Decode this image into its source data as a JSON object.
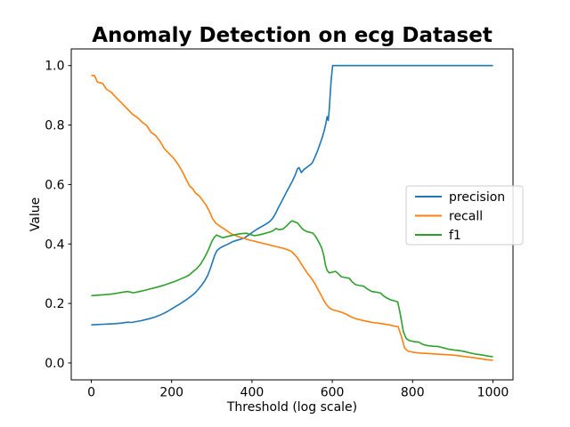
{
  "figure": {
    "background": "#ffffff"
  },
  "chart_data": {
    "type": "line",
    "title": "Anomaly Detection on ecg Dataset",
    "xlabel": "Threshold (log scale)",
    "ylabel": "Value",
    "xlim": [
      -50,
      1050
    ],
    "ylim": [
      -0.057,
      1.056
    ],
    "xticks": [
      0,
      200,
      400,
      600,
      800,
      1000
    ],
    "xtick_labels": [
      "0",
      "200",
      "400",
      "600",
      "800",
      "1000"
    ],
    "yticks": [
      0.0,
      0.2,
      0.4,
      0.6,
      0.8,
      1.0
    ],
    "ytick_labels": [
      "0.0",
      "0.2",
      "0.4",
      "0.6",
      "0.8",
      "1.0"
    ],
    "grid": false,
    "legend": {
      "position": "center right",
      "entries": [
        "precision",
        "recall",
        "f1"
      ]
    },
    "series": [
      {
        "name": "precision",
        "color": "#1f77b4",
        "points": [
          [
            0,
            0.128
          ],
          [
            15,
            0.129
          ],
          [
            30,
            0.13
          ],
          [
            45,
            0.131
          ],
          [
            60,
            0.132
          ],
          [
            75,
            0.134
          ],
          [
            90,
            0.137
          ],
          [
            100,
            0.136
          ],
          [
            112,
            0.139
          ],
          [
            124,
            0.142
          ],
          [
            136,
            0.146
          ],
          [
            148,
            0.15
          ],
          [
            158,
            0.154
          ],
          [
            168,
            0.159
          ],
          [
            178,
            0.165
          ],
          [
            188,
            0.172
          ],
          [
            198,
            0.18
          ],
          [
            208,
            0.188
          ],
          [
            218,
            0.196
          ],
          [
            228,
            0.205
          ],
          [
            238,
            0.214
          ],
          [
            248,
            0.224
          ],
          [
            258,
            0.235
          ],
          [
            266,
            0.247
          ],
          [
            274,
            0.26
          ],
          [
            282,
            0.275
          ],
          [
            290,
            0.295
          ],
          [
            297,
            0.32
          ],
          [
            303,
            0.345
          ],
          [
            308,
            0.365
          ],
          [
            313,
            0.378
          ],
          [
            320,
            0.386
          ],
          [
            328,
            0.392
          ],
          [
            336,
            0.397
          ],
          [
            344,
            0.402
          ],
          [
            352,
            0.408
          ],
          [
            362,
            0.412
          ],
          [
            372,
            0.416
          ],
          [
            382,
            0.421
          ],
          [
            392,
            0.43
          ],
          [
            402,
            0.44
          ],
          [
            413,
            0.45
          ],
          [
            423,
            0.458
          ],
          [
            434,
            0.466
          ],
          [
            444,
            0.475
          ],
          [
            452,
            0.487
          ],
          [
            459,
            0.503
          ],
          [
            465,
            0.52
          ],
          [
            472,
            0.538
          ],
          [
            479,
            0.556
          ],
          [
            486,
            0.575
          ],
          [
            493,
            0.592
          ],
          [
            500,
            0.61
          ],
          [
            507,
            0.63
          ],
          [
            513,
            0.652
          ],
          [
            517,
            0.657
          ],
          [
            523,
            0.64
          ],
          [
            529,
            0.65
          ],
          [
            536,
            0.657
          ],
          [
            543,
            0.664
          ],
          [
            550,
            0.672
          ],
          [
            556,
            0.69
          ],
          [
            563,
            0.712
          ],
          [
            569,
            0.735
          ],
          [
            575,
            0.758
          ],
          [
            580,
            0.782
          ],
          [
            584,
            0.805
          ],
          [
            587,
            0.828
          ],
          [
            590,
            0.815
          ],
          [
            593,
            0.86
          ],
          [
            595,
            0.905
          ],
          [
            597,
            0.945
          ],
          [
            599,
            0.975
          ],
          [
            601,
            1.0
          ],
          [
            700,
            1.0
          ],
          [
            800,
            1.0
          ],
          [
            900,
            1.0
          ],
          [
            1000,
            1.0
          ]
        ]
      },
      {
        "name": "recall",
        "color": "#ff7f0e",
        "points": [
          [
            0,
            0.967
          ],
          [
            8,
            0.966
          ],
          [
            15,
            0.945
          ],
          [
            28,
            0.94
          ],
          [
            38,
            0.92
          ],
          [
            50,
            0.91
          ],
          [
            60,
            0.895
          ],
          [
            71,
            0.88
          ],
          [
            82,
            0.865
          ],
          [
            93,
            0.85
          ],
          [
            104,
            0.835
          ],
          [
            115,
            0.825
          ],
          [
            126,
            0.81
          ],
          [
            137,
            0.8
          ],
          [
            149,
            0.775
          ],
          [
            160,
            0.765
          ],
          [
            171,
            0.745
          ],
          [
            182,
            0.72
          ],
          [
            193,
            0.705
          ],
          [
            204,
            0.69
          ],
          [
            215,
            0.67
          ],
          [
            226,
            0.645
          ],
          [
            237,
            0.615
          ],
          [
            245,
            0.595
          ],
          [
            253,
            0.585
          ],
          [
            260,
            0.57
          ],
          [
            270,
            0.56
          ],
          [
            278,
            0.545
          ],
          [
            286,
            0.53
          ],
          [
            292,
            0.515
          ],
          [
            297,
            0.5
          ],
          [
            302,
            0.485
          ],
          [
            310,
            0.47
          ],
          [
            318,
            0.462
          ],
          [
            326,
            0.455
          ],
          [
            334,
            0.448
          ],
          [
            342,
            0.44
          ],
          [
            350,
            0.433
          ],
          [
            360,
            0.428
          ],
          [
            370,
            0.423
          ],
          [
            380,
            0.419
          ],
          [
            392,
            0.414
          ],
          [
            404,
            0.41
          ],
          [
            416,
            0.406
          ],
          [
            428,
            0.402
          ],
          [
            440,
            0.398
          ],
          [
            452,
            0.394
          ],
          [
            464,
            0.39
          ],
          [
            476,
            0.386
          ],
          [
            488,
            0.381
          ],
          [
            498,
            0.375
          ],
          [
            506,
            0.365
          ],
          [
            514,
            0.352
          ],
          [
            522,
            0.335
          ],
          [
            530,
            0.318
          ],
          [
            539,
            0.3
          ],
          [
            548,
            0.285
          ],
          [
            556,
            0.268
          ],
          [
            564,
            0.248
          ],
          [
            572,
            0.228
          ],
          [
            579,
            0.21
          ],
          [
            585,
            0.197
          ],
          [
            592,
            0.186
          ],
          [
            600,
            0.179
          ],
          [
            612,
            0.175
          ],
          [
            624,
            0.17
          ],
          [
            636,
            0.163
          ],
          [
            646,
            0.155
          ],
          [
            658,
            0.149
          ],
          [
            672,
            0.144
          ],
          [
            686,
            0.14
          ],
          [
            700,
            0.136
          ],
          [
            714,
            0.134
          ],
          [
            728,
            0.131
          ],
          [
            742,
            0.128
          ],
          [
            754,
            0.124
          ],
          [
            764,
            0.122
          ],
          [
            772,
            0.09
          ],
          [
            780,
            0.05
          ],
          [
            788,
            0.04
          ],
          [
            800,
            0.036
          ],
          [
            820,
            0.033
          ],
          [
            845,
            0.031
          ],
          [
            870,
            0.029
          ],
          [
            895,
            0.027
          ],
          [
            915,
            0.024
          ],
          [
            932,
            0.021
          ],
          [
            950,
            0.018
          ],
          [
            970,
            0.014
          ],
          [
            985,
            0.011
          ],
          [
            1000,
            0.009
          ]
        ]
      },
      {
        "name": "f1",
        "color": "#2ca02c",
        "points": [
          [
            0,
            0.226
          ],
          [
            20,
            0.228
          ],
          [
            40,
            0.23
          ],
          [
            58,
            0.233
          ],
          [
            75,
            0.237
          ],
          [
            90,
            0.24
          ],
          [
            105,
            0.236
          ],
          [
            120,
            0.24
          ],
          [
            135,
            0.245
          ],
          [
            150,
            0.25
          ],
          [
            165,
            0.255
          ],
          [
            180,
            0.261
          ],
          [
            195,
            0.268
          ],
          [
            210,
            0.275
          ],
          [
            222,
            0.282
          ],
          [
            234,
            0.289
          ],
          [
            244,
            0.296
          ],
          [
            254,
            0.308
          ],
          [
            263,
            0.318
          ],
          [
            272,
            0.332
          ],
          [
            280,
            0.35
          ],
          [
            287,
            0.368
          ],
          [
            294,
            0.388
          ],
          [
            300,
            0.408
          ],
          [
            306,
            0.422
          ],
          [
            312,
            0.43
          ],
          [
            320,
            0.425
          ],
          [
            328,
            0.421
          ],
          [
            336,
            0.424
          ],
          [
            345,
            0.427
          ],
          [
            355,
            0.43
          ],
          [
            365,
            0.433
          ],
          [
            376,
            0.435
          ],
          [
            386,
            0.436
          ],
          [
            396,
            0.432
          ],
          [
            406,
            0.428
          ],
          [
            416,
            0.43
          ],
          [
            426,
            0.433
          ],
          [
            436,
            0.437
          ],
          [
            446,
            0.441
          ],
          [
            452,
            0.444
          ],
          [
            460,
            0.452
          ],
          [
            468,
            0.448
          ],
          [
            477,
            0.45
          ],
          [
            484,
            0.458
          ],
          [
            490,
            0.466
          ],
          [
            495,
            0.473
          ],
          [
            500,
            0.478
          ],
          [
            507,
            0.474
          ],
          [
            514,
            0.47
          ],
          [
            521,
            0.458
          ],
          [
            528,
            0.448
          ],
          [
            536,
            0.442
          ],
          [
            544,
            0.439
          ],
          [
            551,
            0.437
          ],
          [
            557,
            0.428
          ],
          [
            563,
            0.415
          ],
          [
            569,
            0.4
          ],
          [
            574,
            0.385
          ],
          [
            579,
            0.36
          ],
          [
            583,
            0.33
          ],
          [
            587,
            0.312
          ],
          [
            592,
            0.303
          ],
          [
            600,
            0.305
          ],
          [
            608,
            0.308
          ],
          [
            615,
            0.3
          ],
          [
            622,
            0.29
          ],
          [
            632,
            0.287
          ],
          [
            642,
            0.285
          ],
          [
            650,
            0.272
          ],
          [
            658,
            0.263
          ],
          [
            668,
            0.26
          ],
          [
            678,
            0.258
          ],
          [
            688,
            0.248
          ],
          [
            698,
            0.24
          ],
          [
            710,
            0.238
          ],
          [
            720,
            0.235
          ],
          [
            728,
            0.225
          ],
          [
            736,
            0.218
          ],
          [
            746,
            0.212
          ],
          [
            756,
            0.208
          ],
          [
            763,
            0.205
          ],
          [
            770,
            0.16
          ],
          [
            777,
            0.105
          ],
          [
            784,
            0.082
          ],
          [
            792,
            0.075
          ],
          [
            802,
            0.072
          ],
          [
            815,
            0.07
          ],
          [
            826,
            0.062
          ],
          [
            838,
            0.058
          ],
          [
            852,
            0.056
          ],
          [
            865,
            0.055
          ],
          [
            878,
            0.05
          ],
          [
            890,
            0.046
          ],
          [
            905,
            0.043
          ],
          [
            918,
            0.041
          ],
          [
            930,
            0.038
          ],
          [
            942,
            0.034
          ],
          [
            955,
            0.03
          ],
          [
            966,
            0.028
          ],
          [
            977,
            0.026
          ],
          [
            988,
            0.023
          ],
          [
            1000,
            0.021
          ]
        ]
      }
    ]
  },
  "layout": {
    "axes_rect": [
      80,
      55,
      496,
      372
    ],
    "legend_rect": [
      456,
      209,
      131,
      66
    ]
  }
}
